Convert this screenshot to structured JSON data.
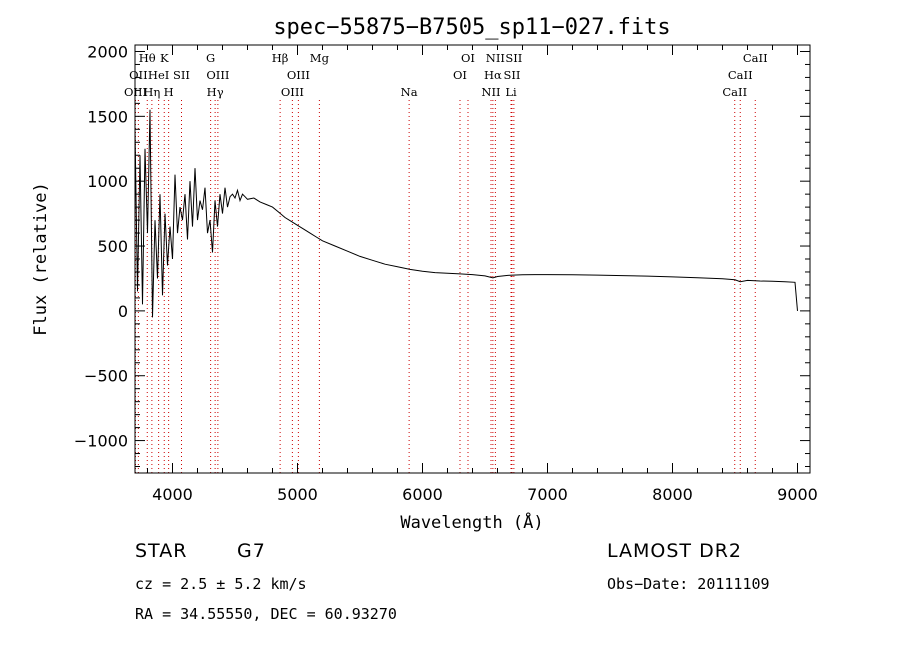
{
  "chart_data": {
    "type": "line",
    "title": "spec−55875−B7505_sp11−027.fits",
    "xlabel": "Wavelength (Å)",
    "ylabel": "Flux (relative)",
    "xlim": [
      3700,
      9100
    ],
    "ylim": [
      -1250,
      2050
    ],
    "xticks": [
      4000,
      5000,
      6000,
      7000,
      8000,
      9000
    ],
    "yticks": [
      -1000,
      -500,
      0,
      500,
      1000,
      1500,
      2000
    ],
    "grid": false,
    "series": [
      {
        "x": [
          3700,
          3720,
          3740,
          3760,
          3780,
          3800,
          3820,
          3840,
          3860,
          3880,
          3900,
          3920,
          3940,
          3960,
          3980,
          4000,
          4020,
          4040,
          4060,
          4080,
          4100,
          4120,
          4140,
          4160,
          4180,
          4200,
          4220,
          4240,
          4260,
          4280,
          4300,
          4320,
          4340,
          4360,
          4380,
          4400,
          4420,
          4440,
          4460,
          4480,
          4500,
          4520,
          4540,
          4560,
          4580,
          4600,
          4650,
          4700,
          4750,
          4800,
          4850,
          4900,
          4950,
          5000,
          5050,
          5100,
          5150,
          5200,
          5300,
          5400,
          5500,
          5600,
          5700,
          5800,
          5900,
          6000,
          6100,
          6200,
          6300,
          6400,
          6500,
          6563,
          6600,
          6700,
          6800,
          6900,
          7000,
          7200,
          7400,
          7600,
          7800,
          8000,
          8200,
          8400,
          8500,
          8542,
          8600,
          8700,
          8800,
          8900,
          8980,
          9000
        ],
        "y": [
          1400,
          150,
          1200,
          50,
          1250,
          600,
          1550,
          -50,
          700,
          250,
          900,
          120,
          750,
          350,
          650,
          400,
          1050,
          600,
          800,
          700,
          900,
          550,
          1000,
          650,
          1100,
          700,
          850,
          780,
          950,
          600,
          700,
          450,
          850,
          650,
          900,
          750,
          950,
          800,
          880,
          900,
          870,
          930,
          850,
          900,
          880,
          860,
          870,
          840,
          820,
          800,
          760,
          720,
          690,
          660,
          630,
          600,
          570,
          540,
          500,
          460,
          420,
          390,
          360,
          340,
          320,
          305,
          295,
          290,
          285,
          280,
          270,
          255,
          265,
          275,
          278,
          280,
          280,
          278,
          276,
          272,
          268,
          262,
          255,
          248,
          240,
          225,
          235,
          230,
          228,
          225,
          220,
          0
        ]
      }
    ],
    "spectral_lines": [
      {
        "x": 3704,
        "label": "OIII",
        "row": 2
      },
      {
        "x": 3727,
        "label": "OII",
        "row": 1
      },
      {
        "x": 3798,
        "label": "Hθ",
        "row": 0
      },
      {
        "x": 3835,
        "label": "Hη",
        "row": 2
      },
      {
        "x": 3889,
        "label": "HeI",
        "row": 1
      },
      {
        "x": 3934,
        "label": "K",
        "row": 0
      },
      {
        "x": 3969,
        "label": "H",
        "row": 2
      },
      {
        "x": 4072,
        "label": "SII",
        "row": 1
      },
      {
        "x": 4305,
        "label": "G",
        "row": 0
      },
      {
        "x": 4341,
        "label": "Hγ",
        "row": 2
      },
      {
        "x": 4363,
        "label": "OIII",
        "row": 1
      },
      {
        "x": 4861,
        "label": "Hβ",
        "row": 0
      },
      {
        "x": 4959,
        "label": "OIII",
        "row": 2
      },
      {
        "x": 5007,
        "label": "OIII",
        "row": 1
      },
      {
        "x": 5175,
        "label": "Mg",
        "row": 0
      },
      {
        "x": 5893,
        "label": "Na",
        "row": 2
      },
      {
        "x": 6300,
        "label": "OI",
        "row": 1
      },
      {
        "x": 6364,
        "label": "OI",
        "row": 0
      },
      {
        "x": 6548,
        "label": "NII",
        "row": 2
      },
      {
        "x": 6563,
        "label": "Hα",
        "row": 1
      },
      {
        "x": 6583,
        "label": "NII",
        "row": 0
      },
      {
        "x": 6708,
        "label": "Li",
        "row": 2
      },
      {
        "x": 6716,
        "label": "SII",
        "row": 1
      },
      {
        "x": 6731,
        "label": "SII",
        "row": 0
      },
      {
        "x": 8498,
        "label": "CaII",
        "row": 2
      },
      {
        "x": 8542,
        "label": "CaII",
        "row": 1
      },
      {
        "x": 8662,
        "label": "CaII",
        "row": 0
      }
    ]
  },
  "info": {
    "object_class": "STAR",
    "subclass": "G7",
    "survey": "LAMOST DR2",
    "redshift": "cz = 2.5 ± 5.2 km/s",
    "obs_date": "Obs−Date: 20111109",
    "coords": "RA =  34.55550, DEC =  60.93270"
  },
  "colors": {
    "spectrum": "#000000",
    "lines": "#cc0000",
    "axes": "#000000"
  }
}
